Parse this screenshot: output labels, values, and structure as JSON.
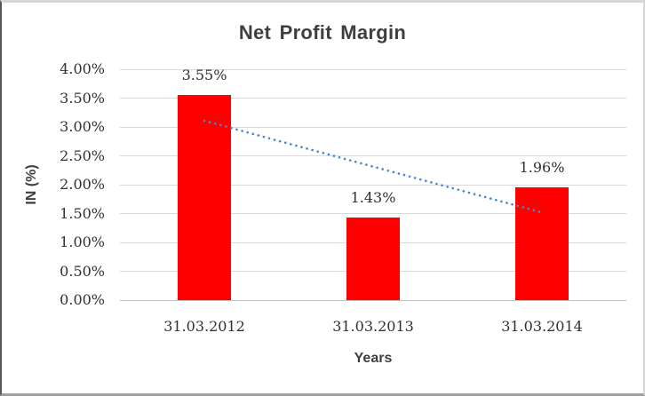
{
  "chart_data": {
    "type": "bar",
    "title": "Net Profit Margin",
    "xlabel": "Years",
    "ylabel": "IN (%)",
    "categories": [
      "31.03.2012",
      "31.03.2013",
      "31.03.2014"
    ],
    "values": [
      3.55,
      1.43,
      1.96
    ],
    "value_labels": [
      "3.55%",
      "1.43%",
      "1.96%"
    ],
    "ylim": [
      0,
      4
    ],
    "ytick_step": 0.5,
    "ytick_labels": [
      "0.00%",
      "0.50%",
      "1.00%",
      "1.50%",
      "2.00%",
      "2.50%",
      "3.00%",
      "3.50%",
      "4.00%"
    ],
    "grid": true,
    "legend": "none",
    "trendline": {
      "type": "linear",
      "style": "round-dot"
    }
  },
  "colors": {
    "bar": "#ff0000",
    "trendline": "#4a86c8",
    "gridline": "#d9d9d9",
    "axis_line": "#bfbfbf",
    "label_text": "#303030",
    "title_text": "#3f3f3f"
  }
}
